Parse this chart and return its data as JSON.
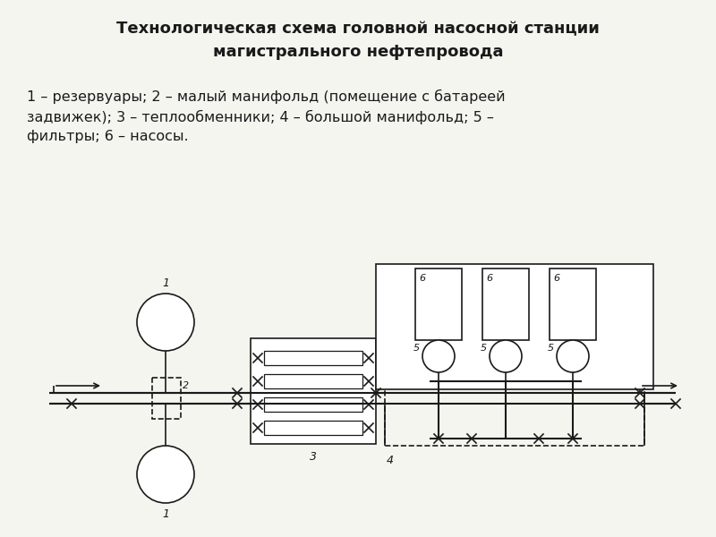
{
  "title_line1": "Технологическая схема головной насосной станции",
  "title_line2": "магистрального нефтепровода",
  "legend_text": "1 – резервуары; 2 – малый манифольд (помещение с батареей\nзадвижек); 3 – теплообменники; 4 – большой манифольд; 5 –\nфильтры; 6 – насосы.",
  "bg_color": "#f5f5f0",
  "line_color": "#1a1a1a",
  "title_fontsize": 13,
  "legend_fontsize": 11.5
}
